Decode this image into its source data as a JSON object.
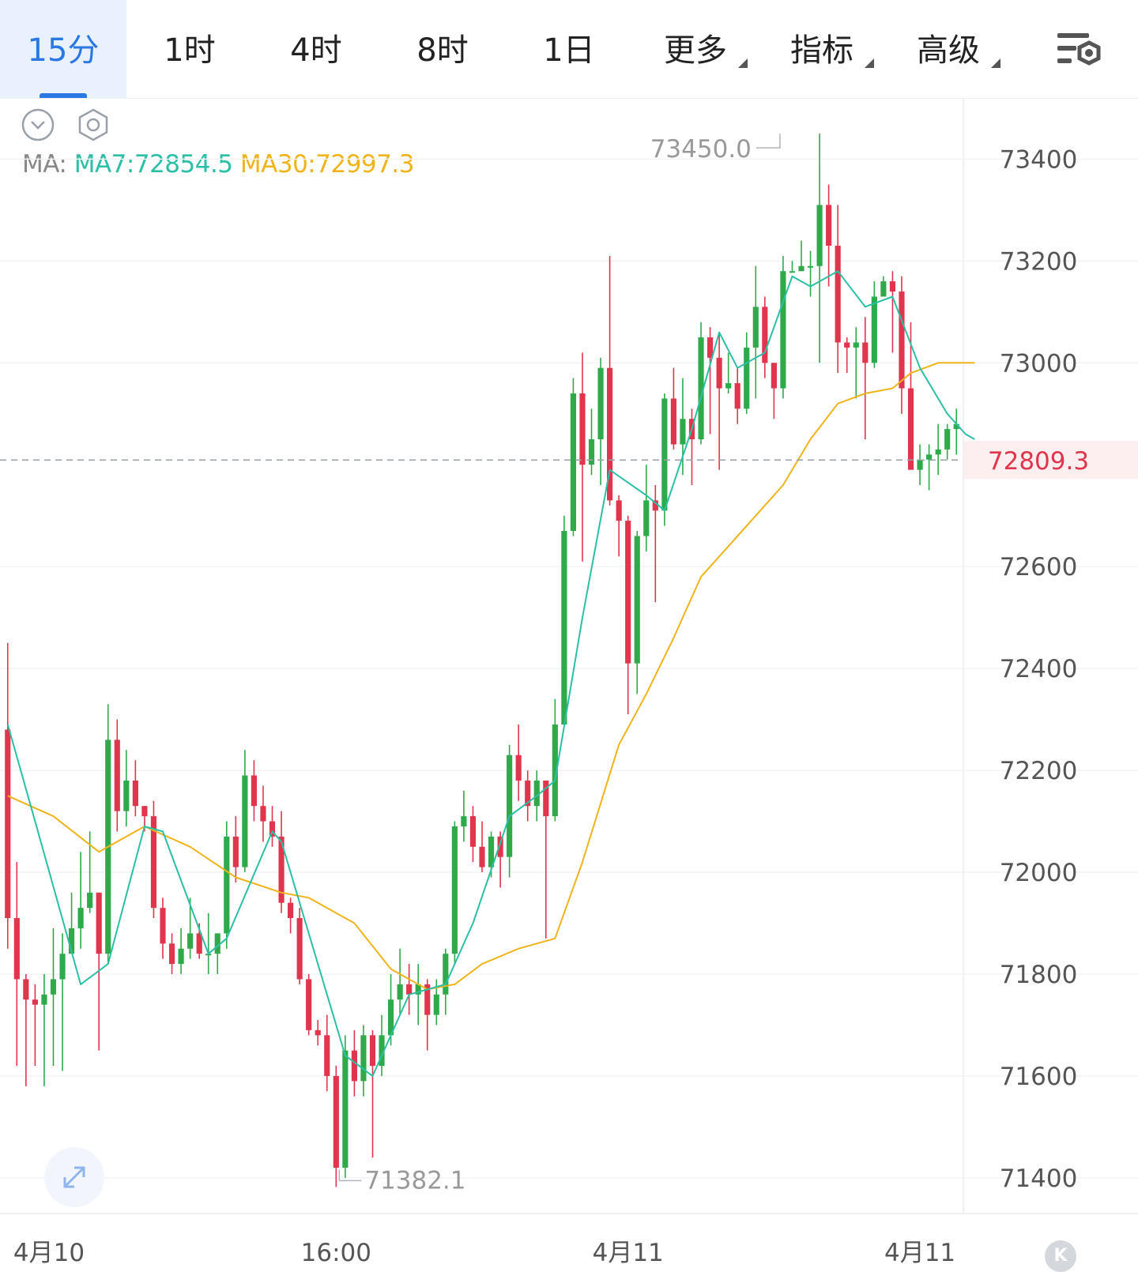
{
  "tabs": [
    {
      "label": "15分",
      "active": true,
      "dropdown": false
    },
    {
      "label": "1时",
      "active": false,
      "dropdown": false
    },
    {
      "label": "4时",
      "active": false,
      "dropdown": false
    },
    {
      "label": "8时",
      "active": false,
      "dropdown": false
    },
    {
      "label": "1日",
      "active": false,
      "dropdown": false
    },
    {
      "label": "更多",
      "active": false,
      "dropdown": true
    },
    {
      "label": "指标",
      "active": false,
      "dropdown": true
    },
    {
      "label": "高级",
      "active": false,
      "dropdown": true
    }
  ],
  "toolbar": {
    "settings_icon": "chart-settings-icon",
    "collapse_icon": "chevron-down-circle-icon",
    "hex_icon": "hexagon-settings-icon",
    "expand_icon": "expand-arrows-icon",
    "logo_text": "K"
  },
  "ma_legend": {
    "label": "MA:",
    "ma7": "MA7:72854.5",
    "ma30": "MA30:72997.3"
  },
  "colors": {
    "up": "#2eaa4a",
    "down": "#e0354c",
    "ma7": "#2bbfa5",
    "ma30": "#f0b41a",
    "active_tab": "#2a78e4"
  },
  "chart_data": {
    "type": "candlestick",
    "interval": "15分",
    "ylim": [
      71330,
      73520
    ],
    "y_ticks": [
      73400,
      73200,
      73000,
      72600,
      72400,
      72200,
      72000,
      71800,
      71600,
      71400
    ],
    "y_tick_labels": [
      "73400",
      "73200",
      "73000",
      "72600",
      "72400",
      "72200",
      "72000",
      "71800",
      "71600",
      "71400"
    ],
    "x_labels": [
      {
        "label": "4月10",
        "index": 2
      },
      {
        "label": "16:00",
        "index": 36
      },
      {
        "label": "4月11",
        "index": 68
      },
      {
        "label": "4月11",
        "index": 100
      }
    ],
    "last_price": 72809.3,
    "last_price_label": "72809.3",
    "high": {
      "label": "73450.0",
      "value": 73450,
      "index": 85
    },
    "low": {
      "label": "71382.1",
      "value": 71382.1,
      "index": 36
    },
    "candles": [
      [
        72280,
        71910,
        72450,
        71850
      ],
      [
        71910,
        71790,
        72020,
        71620
      ],
      [
        71790,
        71750,
        71800,
        71580
      ],
      [
        71750,
        71740,
        71780,
        71620
      ],
      [
        71740,
        71760,
        71800,
        71580
      ],
      [
        71760,
        71790,
        71890,
        71620
      ],
      [
        71790,
        71840,
        71880,
        71610
      ],
      [
        71840,
        71890,
        71960,
        71840
      ],
      [
        71890,
        71930,
        72040,
        71850
      ],
      [
        71930,
        71960,
        72080,
        71920
      ],
      [
        71960,
        71840,
        71960,
        71650
      ],
      [
        71840,
        72260,
        72330,
        71820
      ],
      [
        72260,
        72120,
        72300,
        72080
      ],
      [
        72120,
        72180,
        72240,
        72090
      ],
      [
        72180,
        72130,
        72220,
        72110
      ],
      [
        72130,
        72110,
        72130,
        72080
      ],
      [
        72110,
        71930,
        72140,
        71910
      ],
      [
        71930,
        71860,
        71950,
        71830
      ],
      [
        71860,
        71820,
        71880,
        71800
      ],
      [
        71820,
        71850,
        71890,
        71800
      ],
      [
        71850,
        71880,
        71950,
        71830
      ],
      [
        71880,
        71840,
        71900,
        71830
      ],
      [
        71840,
        71840,
        71920,
        71800
      ],
      [
        71840,
        71880,
        71880,
        71800
      ],
      [
        71880,
        72070,
        72100,
        71850
      ],
      [
        72070,
        72010,
        72110,
        71980
      ],
      [
        72010,
        72190,
        72240,
        72000
      ],
      [
        72190,
        72130,
        72220,
        72100
      ],
      [
        72130,
        72100,
        72170,
        72060
      ],
      [
        72100,
        72070,
        72130,
        72050
      ],
      [
        72070,
        71940,
        72120,
        71920
      ],
      [
        71940,
        71910,
        71950,
        71880
      ],
      [
        71910,
        71790,
        71930,
        71780
      ],
      [
        71790,
        71690,
        71800,
        71680
      ],
      [
        71690,
        71680,
        71710,
        71660
      ],
      [
        71680,
        71600,
        71720,
        71570
      ],
      [
        71600,
        71420,
        71620,
        71382.1
      ],
      [
        71420,
        71650,
        71680,
        71400
      ],
      [
        71650,
        71590,
        71690,
        71560
      ],
      [
        71590,
        71680,
        71700,
        71560
      ],
      [
        71680,
        71620,
        71690,
        71440
      ],
      [
        71620,
        71680,
        71720,
        71600
      ],
      [
        71680,
        71750,
        71800,
        71660
      ],
      [
        71750,
        71780,
        71850,
        71720
      ],
      [
        71780,
        71760,
        71820,
        71720
      ],
      [
        71760,
        71780,
        71820,
        71700
      ],
      [
        71780,
        71720,
        71790,
        71650
      ],
      [
        71720,
        71760,
        71790,
        71700
      ],
      [
        71760,
        71840,
        71850,
        71720
      ],
      [
        71840,
        72090,
        72100,
        71820
      ],
      [
        72090,
        72110,
        72160,
        72060
      ],
      [
        72110,
        72050,
        72130,
        72020
      ],
      [
        72050,
        72010,
        72100,
        72000
      ],
      [
        72010,
        72070,
        72080,
        71990
      ],
      [
        72070,
        72030,
        72080,
        71970
      ],
      [
        72030,
        72230,
        72250,
        71990
      ],
      [
        72230,
        72180,
        72290,
        72140
      ],
      [
        72180,
        72130,
        72200,
        72100
      ],
      [
        72130,
        72180,
        72200,
        72100
      ],
      [
        72180,
        72110,
        72180,
        71870
      ],
      [
        72110,
        72290,
        72340,
        72100
      ],
      [
        72290,
        72670,
        72700,
        72290
      ],
      [
        72670,
        72940,
        72970,
        72660
      ],
      [
        72940,
        72800,
        73020,
        72610
      ],
      [
        72800,
        72850,
        72910,
        72780
      ],
      [
        72850,
        72990,
        73010,
        72760
      ],
      [
        72990,
        72730,
        73210,
        72720
      ],
      [
        72730,
        72690,
        72740,
        72620
      ],
      [
        72690,
        72410,
        72700,
        72310
      ],
      [
        72410,
        72660,
        72670,
        72350
      ],
      [
        72660,
        72730,
        72800,
        72630
      ],
      [
        72730,
        72710,
        72760,
        72530
      ],
      [
        72710,
        72930,
        72940,
        72680
      ],
      [
        72930,
        72840,
        72990,
        72830
      ],
      [
        72840,
        72890,
        72970,
        72780
      ],
      [
        72890,
        72850,
        72910,
        72760
      ],
      [
        72850,
        73050,
        73080,
        72840
      ],
      [
        73050,
        73010,
        73070,
        72860
      ],
      [
        73010,
        72950,
        73060,
        72790
      ],
      [
        72950,
        72960,
        73020,
        72940
      ],
      [
        72960,
        72910,
        72990,
        72880
      ],
      [
        72910,
        73030,
        73060,
        72900
      ],
      [
        73030,
        73110,
        73190,
        72930
      ],
      [
        73110,
        73000,
        73130,
        72970
      ],
      [
        73000,
        72950,
        73000,
        72890
      ],
      [
        72950,
        73180,
        73210,
        72930
      ],
      [
        73180,
        73180,
        73200,
        73180
      ],
      [
        73180,
        73190,
        73240,
        73180
      ],
      [
        73190,
        73190,
        73220,
        73130
      ],
      [
        73190,
        73310,
        73450,
        73000
      ],
      [
        73310,
        73230,
        73350,
        73150
      ],
      [
        73230,
        73040,
        73310,
        72980
      ],
      [
        73040,
        73030,
        73050,
        72980
      ],
      [
        73030,
        73040,
        73070,
        72930
      ],
      [
        73040,
        73000,
        73090,
        72850
      ],
      [
        73000,
        73130,
        73160,
        72990
      ],
      [
        73130,
        73160,
        73170,
        73140
      ],
      [
        73160,
        73140,
        73180,
        73020
      ],
      [
        73140,
        72950,
        73170,
        72900
      ],
      [
        72950,
        72790,
        73080,
        72790
      ],
      [
        72790,
        72810,
        72840,
        72760
      ],
      [
        72810,
        72820,
        72840,
        72750
      ],
      [
        72820,
        72830,
        72880,
        72780
      ],
      [
        72830,
        72870,
        72880,
        72810
      ],
      [
        72870,
        72880,
        72910,
        72820
      ]
    ],
    "ma7": [
      [
        0,
        72290
      ],
      [
        3,
        72100
      ],
      [
        8,
        71780
      ],
      [
        11,
        71820
      ],
      [
        15,
        72090
      ],
      [
        17,
        72080
      ],
      [
        22,
        71840
      ],
      [
        24,
        71870
      ],
      [
        29,
        72080
      ],
      [
        30,
        72060
      ],
      [
        33,
        71880
      ],
      [
        37,
        71640
      ],
      [
        40,
        71600
      ],
      [
        44,
        71760
      ],
      [
        48,
        71780
      ],
      [
        51,
        71900
      ],
      [
        55,
        72110
      ],
      [
        58,
        72150
      ],
      [
        60,
        72180
      ],
      [
        63,
        72500
      ],
      [
        66,
        72790
      ],
      [
        70,
        72740
      ],
      [
        72,
        72710
      ],
      [
        75,
        72870
      ],
      [
        78,
        73060
      ],
      [
        80,
        72990
      ],
      [
        83,
        73020
      ],
      [
        86,
        73170
      ],
      [
        88,
        73150
      ],
      [
        91,
        73180
      ],
      [
        94,
        73110
      ],
      [
        97,
        73130
      ],
      [
        100,
        72990
      ],
      [
        103,
        72900
      ],
      [
        105,
        72860
      ],
      [
        106,
        72850
      ]
    ],
    "ma30": [
      [
        0,
        72150
      ],
      [
        5,
        72110
      ],
      [
        10,
        72040
      ],
      [
        15,
        72090
      ],
      [
        20,
        72050
      ],
      [
        25,
        71990
      ],
      [
        30,
        71960
      ],
      [
        33,
        71950
      ],
      [
        38,
        71900
      ],
      [
        42,
        71810
      ],
      [
        46,
        71770
      ],
      [
        49,
        71780
      ],
      [
        52,
        71820
      ],
      [
        56,
        71850
      ],
      [
        58,
        71860
      ],
      [
        60,
        71870
      ],
      [
        63,
        72020
      ],
      [
        67,
        72250
      ],
      [
        70,
        72350
      ],
      [
        73,
        72460
      ],
      [
        76,
        72580
      ],
      [
        79,
        72640
      ],
      [
        82,
        72700
      ],
      [
        85,
        72760
      ],
      [
        88,
        72850
      ],
      [
        91,
        72920
      ],
      [
        94,
        72940
      ],
      [
        97,
        72950
      ],
      [
        99,
        72980
      ],
      [
        102,
        73000
      ],
      [
        104,
        73000
      ],
      [
        106,
        73000
      ]
    ]
  }
}
